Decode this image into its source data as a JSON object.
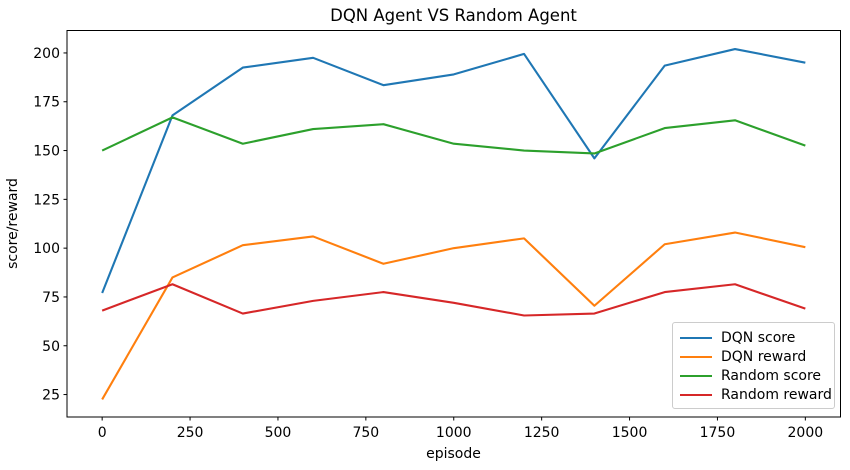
{
  "chart_data": {
    "type": "line",
    "title": "DQN Agent VS Random Agent",
    "xlabel": "episode",
    "ylabel": "score/reward",
    "x": [
      0,
      200,
      400,
      600,
      800,
      1000,
      1200,
      1400,
      1600,
      1800,
      2000
    ],
    "series": [
      {
        "name": "DQN score",
        "color": "#1f77b4",
        "values": [
          77,
          168,
          192.5,
          197.5,
          183.5,
          189,
          199.5,
          146,
          193.5,
          202,
          195
        ]
      },
      {
        "name": "DQN reward",
        "color": "#ff7f0e",
        "values": [
          22.5,
          85,
          101.5,
          106,
          92,
          100,
          105,
          70.5,
          102,
          108,
          100.5
        ]
      },
      {
        "name": "Random score",
        "color": "#2ca02c",
        "values": [
          150,
          167,
          153.5,
          161,
          163.5,
          153.5,
          150,
          148.5,
          161.5,
          165.5,
          152.5
        ]
      },
      {
        "name": "Random reward",
        "color": "#d62728",
        "values": [
          68,
          81.5,
          66.5,
          73,
          77.5,
          72,
          65.5,
          66.5,
          77.5,
          81.5,
          69
        ]
      }
    ],
    "xticks": [
      0,
      250,
      500,
      750,
      1000,
      1250,
      1500,
      1750,
      2000
    ],
    "yticks": [
      25,
      50,
      75,
      100,
      125,
      150,
      175,
      200
    ],
    "xlim": [
      -100,
      2100
    ],
    "ylim": [
      13.5,
      211.5
    ],
    "grid": false,
    "legend_position": "lower right",
    "axis_color": "#000000",
    "background": "#ffffff",
    "line_width": 2.1
  }
}
